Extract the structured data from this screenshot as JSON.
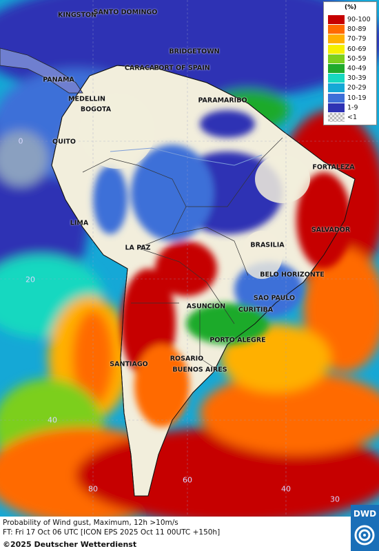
{
  "legend": {
    "title": "(%)",
    "items": [
      {
        "label": "90-100",
        "color": "#c60000"
      },
      {
        "label": "80-89",
        "color": "#ff6a00"
      },
      {
        "label": "70-79",
        "color": "#ffb000"
      },
      {
        "label": "60-69",
        "color": "#f6f000"
      },
      {
        "label": "50-59",
        "color": "#7ccf1e"
      },
      {
        "label": "40-49",
        "color": "#1faa2c"
      },
      {
        "label": "30-39",
        "color": "#17d8c0"
      },
      {
        "label": "20-29",
        "color": "#15a8d6"
      },
      {
        "label": "10-19",
        "color": "#3d6fd8"
      },
      {
        "label": "1-9",
        "color": "#2e32b4"
      },
      {
        "label": "<1",
        "color": "#d0d0d0"
      }
    ]
  },
  "cities": [
    {
      "name": "KINGSTON"
    },
    {
      "name": "SANTO DOMINGO"
    },
    {
      "name": "BRIDGETOWN"
    },
    {
      "name": "CARACAS"
    },
    {
      "name": "PORT OF SPAIN"
    },
    {
      "name": "PANAMA"
    },
    {
      "name": "MEDELLIN"
    },
    {
      "name": "BOGOTA"
    },
    {
      "name": "PARAMARIBO"
    },
    {
      "name": "QUITO"
    },
    {
      "name": "FORTALEZA"
    },
    {
      "name": "LIMA"
    },
    {
      "name": "SALVADOR"
    },
    {
      "name": "BRASILIA"
    },
    {
      "name": "LA PAZ"
    },
    {
      "name": "BELO HORIZONTE"
    },
    {
      "name": "SAO PAULO"
    },
    {
      "name": "ASUNCION"
    },
    {
      "name": "CURITIBA"
    },
    {
      "name": "PORTO ALEGRE"
    },
    {
      "name": "ROSARIO"
    },
    {
      "name": "SANTIAGO"
    },
    {
      "name": "BUENOS AIRES"
    }
  ],
  "grid_labels": {
    "lat": [
      "0",
      "20",
      "40"
    ],
    "lon": [
      "80",
      "60",
      "40",
      "30"
    ]
  },
  "caption": {
    "line1": "Probability of Wind gust, Maximum, 12h >10m/s",
    "line2": "FT: Fri 17 Oct 06 UTC [ICON EPS 2025 Oct 11 00UTC +150h]"
  },
  "copyright": "©2025 Deutscher Wetterdienst",
  "logo": "DWD"
}
